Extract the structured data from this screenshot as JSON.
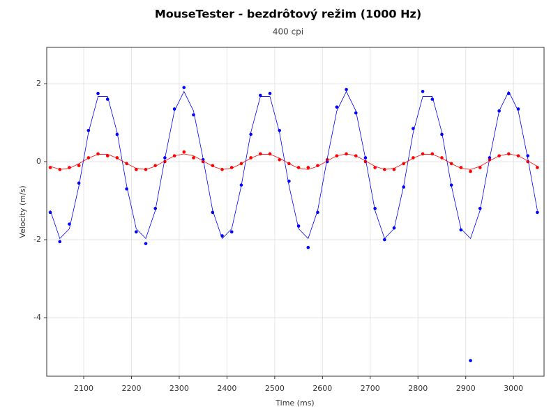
{
  "chart_data": {
    "type": "scatter",
    "title": "MouseTester - bezdrôtový režim (1000 Hz)",
    "subtitle": "400 cpi",
    "xlabel": "Time (ms)",
    "ylabel": "Velocity (m/s)",
    "x": [
      2030,
      2050,
      2070,
      2090,
      2110,
      2130,
      2150,
      2170,
      2190,
      2210,
      2230,
      2250,
      2270,
      2290,
      2310,
      2330,
      2350,
      2370,
      2390,
      2410,
      2430,
      2450,
      2470,
      2490,
      2510,
      2530,
      2550,
      2570,
      2590,
      2610,
      2630,
      2650,
      2670,
      2690,
      2710,
      2730,
      2750,
      2770,
      2790,
      2810,
      2830,
      2850,
      2870,
      2890,
      2910,
      2930,
      2950,
      2970,
      2990,
      3010,
      3030,
      3050
    ],
    "series": [
      {
        "color": "#0000ff",
        "line": false,
        "values": [
          -1.3,
          -2.05,
          -1.6,
          -0.55,
          0.8,
          1.75,
          1.6,
          0.7,
          -0.7,
          -1.8,
          -2.1,
          -1.2,
          0.1,
          1.35,
          1.9,
          1.2,
          0.05,
          -1.3,
          -1.9,
          -1.8,
          -0.6,
          0.7,
          1.7,
          1.75,
          0.8,
          -0.5,
          -1.65,
          -2.2,
          -1.3,
          0.0,
          1.4,
          1.85,
          1.25,
          0.1,
          -1.2,
          -2.0,
          -1.7,
          -0.65,
          0.85,
          1.8,
          1.6,
          0.7,
          -0.6,
          -1.75,
          -5.1,
          -1.2,
          0.1,
          1.3,
          1.75,
          1.35,
          0.15,
          -1.3
        ]
      },
      {
        "color": "#ff0000",
        "line": false,
        "values": [
          -0.15,
          -0.2,
          -0.15,
          -0.1,
          0.1,
          0.2,
          0.15,
          0.1,
          -0.05,
          -0.2,
          -0.2,
          -0.1,
          0.0,
          0.15,
          0.25,
          0.1,
          0.0,
          -0.1,
          -0.2,
          -0.15,
          -0.05,
          0.1,
          0.2,
          0.2,
          0.05,
          -0.05,
          -0.15,
          -0.15,
          -0.1,
          0.05,
          0.15,
          0.2,
          0.15,
          0.0,
          -0.15,
          -0.2,
          -0.2,
          -0.05,
          0.1,
          0.2,
          0.2,
          0.1,
          -0.05,
          -0.15,
          -0.25,
          -0.15,
          0.05,
          0.15,
          0.2,
          0.15,
          0.0,
          -0.15
        ]
      },
      {
        "color": "#0000ff",
        "line": true,
        "values": [
          -1.25,
          -1.97,
          -1.72,
          -0.62,
          0.75,
          1.67,
          1.67,
          0.75,
          -0.62,
          -1.72,
          -1.97,
          -1.25,
          0.08,
          1.3,
          1.8,
          1.3,
          0.08,
          -1.25,
          -1.97,
          -1.72,
          -0.62,
          0.75,
          1.67,
          1.67,
          0.75,
          -0.62,
          -1.72,
          -1.97,
          -1.25,
          0.08,
          1.3,
          1.8,
          1.3,
          0.08,
          -1.25,
          -1.97,
          -1.72,
          -0.62,
          0.75,
          1.67,
          1.67,
          0.75,
          -0.62,
          -1.72,
          -1.97,
          -1.25,
          0.08,
          1.3,
          1.8,
          1.3,
          0.08,
          -1.25
        ]
      },
      {
        "color": "#ff0000",
        "line": true,
        "values": [
          -0.12,
          -0.2,
          -0.17,
          -0.05,
          0.09,
          0.19,
          0.19,
          0.09,
          -0.05,
          -0.17,
          -0.2,
          -0.12,
          0.02,
          0.15,
          0.2,
          0.15,
          0.02,
          -0.12,
          -0.2,
          -0.17,
          -0.05,
          0.09,
          0.19,
          0.19,
          0.09,
          -0.05,
          -0.17,
          -0.2,
          -0.12,
          0.02,
          0.15,
          0.2,
          0.15,
          0.02,
          -0.12,
          -0.2,
          -0.17,
          -0.05,
          0.09,
          0.19,
          0.19,
          0.09,
          -0.05,
          -0.17,
          -0.2,
          -0.12,
          0.02,
          0.15,
          0.2,
          0.15,
          0.02,
          -0.12
        ]
      }
    ],
    "xlim": [
      2022.6,
      3064
    ],
    "ylim": [
      -5.5,
      2.93
    ],
    "xticks": [
      2100,
      2200,
      2300,
      2400,
      2500,
      2600,
      2700,
      2800,
      2900,
      3000
    ],
    "yticks": [
      -4,
      -2,
      0,
      2
    ],
    "grid": true
  }
}
